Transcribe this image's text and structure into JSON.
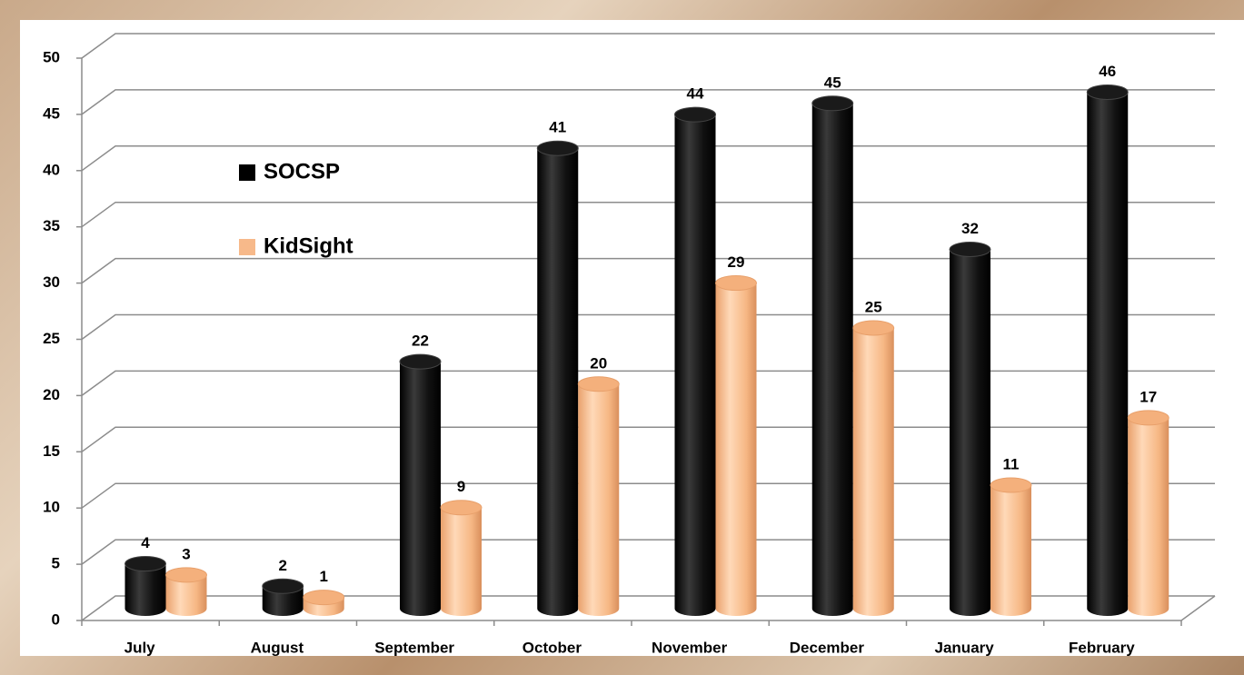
{
  "chart_data": {
    "type": "bar",
    "categories": [
      "July",
      "August",
      "September",
      "October",
      "November",
      "December",
      "January",
      "February"
    ],
    "series": [
      {
        "name": "SOCSP",
        "color": "#000000",
        "values": [
          4,
          2,
          22,
          41,
          44,
          45,
          32,
          46
        ]
      },
      {
        "name": "KidSight",
        "color": "#f7b98a",
        "values": [
          3,
          1,
          9,
          20,
          29,
          25,
          11,
          17
        ]
      }
    ],
    "ylim": [
      0,
      50
    ],
    "yticks": [
      0,
      5,
      10,
      15,
      20,
      25,
      30,
      35,
      40,
      45,
      50
    ],
    "grid": true,
    "legend": "left"
  }
}
